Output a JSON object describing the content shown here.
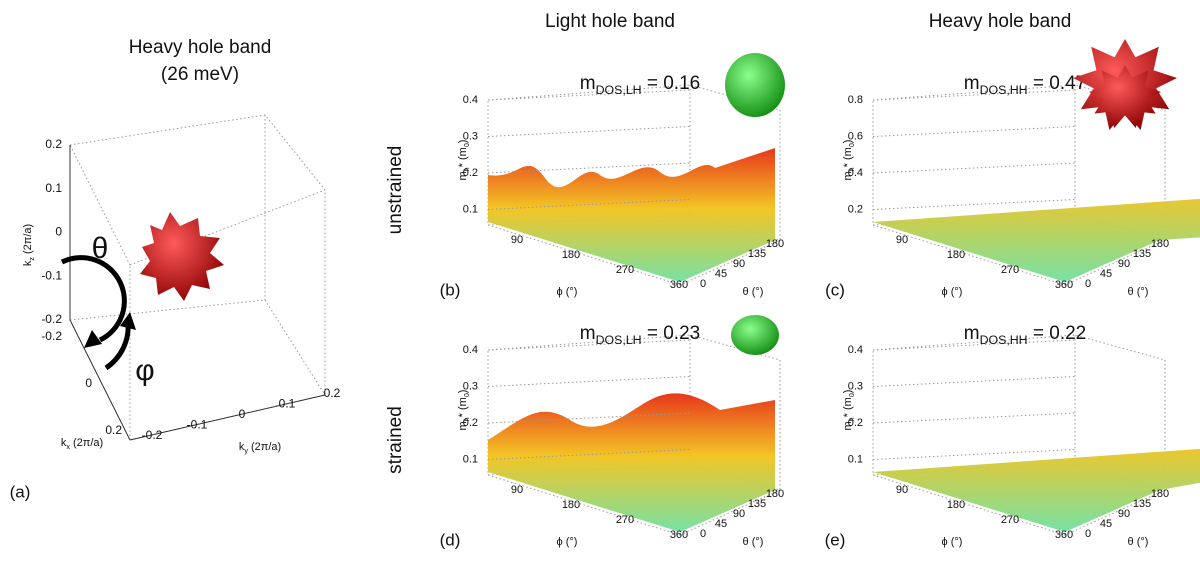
{
  "panel_a": {
    "title": "Heavy hole band",
    "subtitle": "(26 meV)",
    "label": "(a)",
    "kz_ticks": [
      0.2,
      0.1,
      0,
      -0.1,
      -0.2
    ],
    "kx_ticks": [
      -0.2,
      0,
      0.2
    ],
    "ky_ticks": [
      -0.2,
      -0.1,
      0,
      0.1,
      0.2
    ],
    "kz_label": {
      "main": "k",
      "sub": "z",
      "rest": " (2π/a)"
    },
    "kx_label": {
      "main": "k",
      "sub": "x",
      "rest": " (2π/a)"
    },
    "ky_label": {
      "main": "k",
      "sub": "y",
      "rest": " (2π/a)"
    },
    "theta": "θ",
    "phi": "φ"
  },
  "columns": [
    "Light hole band",
    "Heavy hole band"
  ],
  "rows": [
    "unstrained",
    "strained"
  ],
  "surface_axes": {
    "y_label": {
      "main": "m",
      "sub": "h",
      "rest": "* (m",
      "sub2": "0",
      "end": ")"
    },
    "phi_label": "ϕ (°)",
    "theta_label": "θ (°)"
  },
  "panels": [
    {
      "label": "(b)",
      "mdos": {
        "main": "m",
        "sub": "DOS,LH",
        "rest": " = 0.16"
      },
      "yticks": [
        0.4,
        0.3,
        0.2,
        0.1
      ],
      "phi_ticks": [
        90,
        180,
        270,
        360
      ],
      "theta_ticks": [
        0,
        45,
        90,
        135,
        180
      ]
    },
    {
      "label": "(c)",
      "mdos": {
        "main": "m",
        "sub": "DOS,HH",
        "rest": " = 0.47"
      },
      "yticks": [
        0.8,
        0.6,
        0.4,
        0.2
      ],
      "phi_ticks": [
        90,
        180,
        270,
        360
      ],
      "theta_ticks": [
        0,
        45,
        90,
        135,
        180
      ]
    },
    {
      "label": "(d)",
      "mdos": {
        "main": "m",
        "sub": "DOS,LH",
        "rest": " = 0.23"
      },
      "yticks": [
        0.4,
        0.3,
        0.2,
        0.1
      ],
      "phi_ticks": [
        90,
        180,
        270,
        360
      ],
      "theta_ticks": [
        0,
        45,
        90,
        135,
        180
      ]
    },
    {
      "label": "(e)",
      "mdos": {
        "main": "m",
        "sub": "DOS,HH",
        "rest": " = 0.22"
      },
      "yticks": [
        0.4,
        0.3,
        0.2,
        0.1
      ],
      "phi_ticks": [
        90,
        180,
        270,
        360
      ],
      "theta_ticks": [
        0,
        45,
        90,
        135,
        180
      ]
    }
  ]
}
